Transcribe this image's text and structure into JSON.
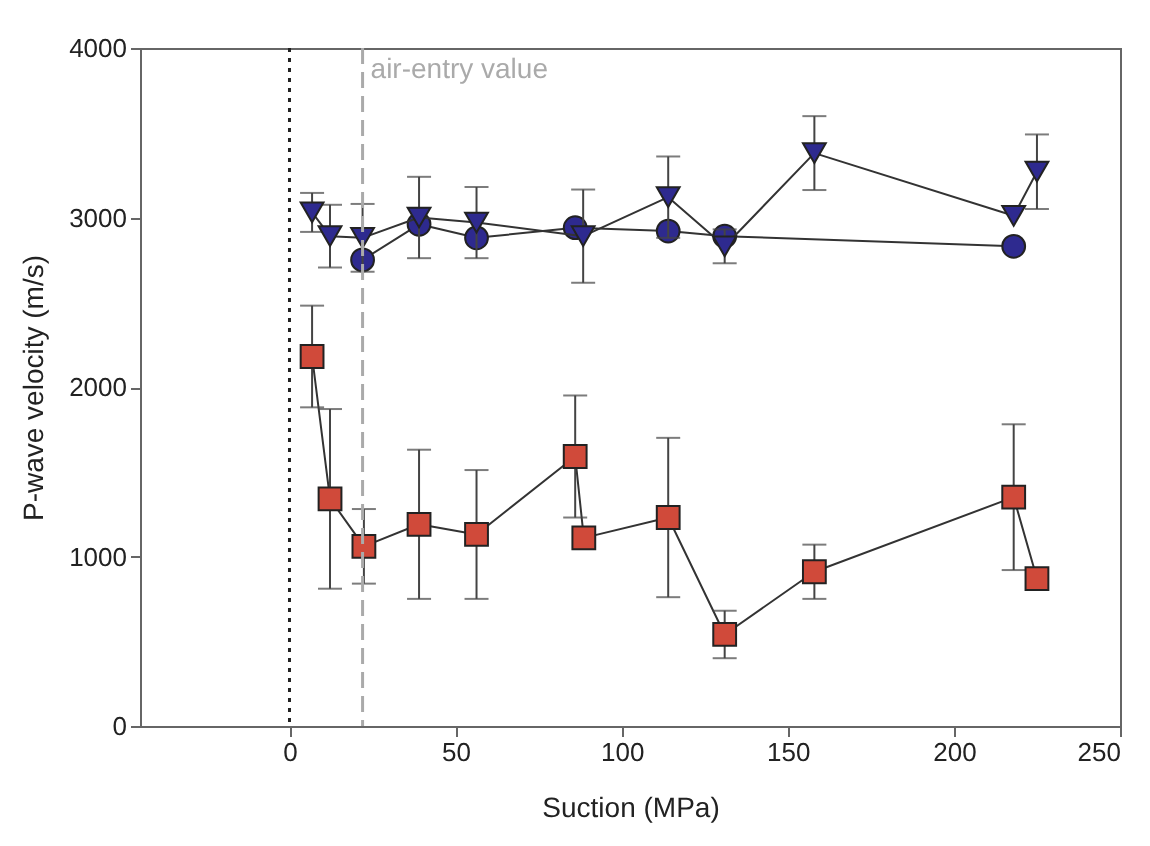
{
  "chart_data": {
    "type": "line",
    "xlabel": "Suction (MPa)",
    "ylabel": "P-wave velocity (m/s)",
    "xlim": [
      -45,
      250
    ],
    "xticks": [
      0,
      50,
      100,
      150,
      200,
      250
    ],
    "ylim": [
      0,
      4000
    ],
    "yticks": [
      0,
      1000,
      2000,
      3000,
      4000
    ],
    "grid": false,
    "series": [
      {
        "color": "#d04a3a",
        "marker": "square",
        "x": [
          6.8,
          12.2,
          22.4,
          39,
          56.3,
          86,
          88.6,
          114,
          131,
          158,
          218,
          225
        ],
        "values": [
          2180,
          1340,
          1060,
          1190,
          1130,
          1590,
          1110,
          1230,
          540,
          910,
          1350,
          870
        ],
        "errors": [
          300,
          530,
          220,
          440,
          380,
          360,
          null,
          470,
          140,
          160,
          430,
          null
        ]
      },
      {
        "color": "#2e2a8f",
        "marker": "circle",
        "x": [
          22,
          39,
          56.3,
          86,
          114,
          131,
          218
        ],
        "values": [
          2750,
          2960,
          2880,
          2940,
          2920,
          2890,
          2830
        ]
      },
      {
        "color": "#2e2a8f",
        "marker": "triangle",
        "x": [
          6.8,
          12.2,
          22,
          39,
          56.3,
          88.4,
          114,
          131,
          158,
          218,
          225
        ],
        "values": [
          3030,
          2890,
          2880,
          3000,
          2970,
          2890,
          3120,
          2830,
          3380,
          3010,
          3270
        ],
        "errors": [
          115,
          185,
          200,
          240,
          210,
          275,
          240,
          100,
          218,
          null,
          220
        ]
      }
    ],
    "ref_lines": [
      {
        "axis": "x",
        "value": 0,
        "label": null,
        "color": "#222222",
        "line_style": "dotted"
      },
      {
        "axis": "x",
        "value": 22,
        "label": "air-entry value",
        "color": "#aaaaaa",
        "line_style": "dashed"
      }
    ]
  }
}
